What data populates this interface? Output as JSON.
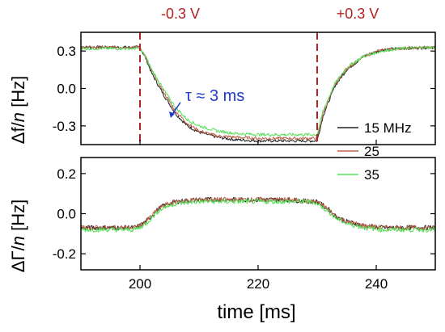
{
  "figure": {
    "x_axis_label": "time [ms]",
    "colors": {
      "voltage": "#b22222",
      "annotation": "#1f3ad1",
      "axis": "#000000"
    }
  },
  "chart_data": [
    {
      "type": "line",
      "panel": "top",
      "ylabel": "Δf/n [Hz]",
      "xlim": [
        190,
        250
      ],
      "ylim": [
        -0.45,
        0.45
      ],
      "x_ticks": [],
      "y_ticks": [
        0.3,
        0.0,
        -0.3
      ],
      "y_tick_labels": [
        "0.3",
        "0.0",
        "-0.3"
      ],
      "grid": false,
      "legend_position": "right",
      "series": [
        {
          "name": "15 MHz",
          "color": "#222222",
          "x": [
            190,
            200,
            201,
            202,
            204,
            206,
            208,
            210,
            213,
            216,
            220,
            225,
            230,
            231,
            233,
            235,
            238,
            241,
            244,
            250
          ],
          "y": [
            0.33,
            0.33,
            0.24,
            0.12,
            -0.05,
            -0.2,
            -0.3,
            -0.35,
            -0.39,
            -0.41,
            -0.42,
            -0.42,
            -0.42,
            -0.22,
            0.02,
            0.15,
            0.26,
            0.31,
            0.32,
            0.33
          ]
        },
        {
          "name": "25",
          "color": "#c0604a",
          "x": [
            190,
            200,
            201,
            202,
            204,
            206,
            208,
            210,
            213,
            216,
            220,
            225,
            230,
            231,
            233,
            235,
            238,
            241,
            244,
            250
          ],
          "y": [
            0.33,
            0.33,
            0.25,
            0.14,
            -0.03,
            -0.18,
            -0.28,
            -0.34,
            -0.38,
            -0.39,
            -0.4,
            -0.4,
            -0.4,
            -0.2,
            0.03,
            0.16,
            0.26,
            0.31,
            0.32,
            0.33
          ]
        },
        {
          "name": "35",
          "color": "#55e055",
          "x": [
            190,
            200,
            201,
            202,
            204,
            206,
            208,
            210,
            213,
            216,
            220,
            225,
            230,
            231,
            233,
            235,
            238,
            241,
            244,
            250
          ],
          "y": [
            0.32,
            0.32,
            0.25,
            0.15,
            -0.01,
            -0.15,
            -0.25,
            -0.3,
            -0.34,
            -0.36,
            -0.37,
            -0.37,
            -0.37,
            -0.18,
            0.04,
            0.17,
            0.26,
            0.3,
            0.32,
            0.33
          ]
        }
      ],
      "vlines": [
        {
          "x": 200,
          "label": "-0.3 V"
        },
        {
          "x": 230,
          "label": "+0.3 V"
        }
      ],
      "annotations": [
        {
          "text": "τ ≈ 3 ms",
          "x": 205.2,
          "y": -0.19
        }
      ]
    },
    {
      "type": "line",
      "panel": "bottom",
      "ylabel": "ΔΓ/n [Hz]",
      "xlim": [
        190,
        250
      ],
      "ylim": [
        -0.28,
        0.28
      ],
      "x_ticks": [
        200,
        220,
        240
      ],
      "x_tick_labels": [
        "200",
        "220",
        "240"
      ],
      "y_ticks": [
        0.2,
        0.0,
        -0.2
      ],
      "y_tick_labels": [
        "0.2",
        "0.0",
        "-0.2"
      ],
      "grid": false,
      "series": [
        {
          "name": "15 MHz",
          "color": "#222222",
          "x": [
            190,
            199,
            200,
            201,
            202,
            203,
            204,
            206,
            210,
            215,
            220,
            225,
            229,
            230,
            231,
            232,
            233,
            235,
            238,
            241,
            244,
            250
          ],
          "y": [
            -0.07,
            -0.07,
            -0.06,
            -0.04,
            -0.01,
            0.02,
            0.04,
            0.06,
            0.07,
            0.07,
            0.07,
            0.07,
            0.06,
            0.06,
            0.04,
            0.02,
            -0.01,
            -0.04,
            -0.06,
            -0.07,
            -0.07,
            -0.07
          ]
        },
        {
          "name": "25",
          "color": "#c0604a",
          "x": [
            190,
            199,
            200,
            201,
            202,
            203,
            204,
            206,
            210,
            215,
            220,
            225,
            229,
            230,
            231,
            232,
            233,
            235,
            238,
            241,
            244,
            250
          ],
          "y": [
            -0.07,
            -0.07,
            -0.06,
            -0.04,
            -0.01,
            0.02,
            0.04,
            0.06,
            0.07,
            0.07,
            0.07,
            0.07,
            0.06,
            0.06,
            0.04,
            0.02,
            -0.01,
            -0.04,
            -0.06,
            -0.07,
            -0.07,
            -0.07
          ]
        },
        {
          "name": "35",
          "color": "#55e055",
          "x": [
            190,
            199,
            200,
            201,
            202,
            203,
            204,
            206,
            210,
            215,
            220,
            225,
            229,
            230,
            231,
            232,
            233,
            235,
            238,
            241,
            244,
            250
          ],
          "y": [
            -0.08,
            -0.08,
            -0.07,
            -0.05,
            -0.02,
            0.01,
            0.03,
            0.05,
            0.06,
            0.06,
            0.06,
            0.06,
            0.06,
            0.05,
            0.03,
            0.01,
            -0.02,
            -0.05,
            -0.07,
            -0.08,
            -0.08,
            -0.08
          ]
        }
      ],
      "vlines": []
    }
  ]
}
